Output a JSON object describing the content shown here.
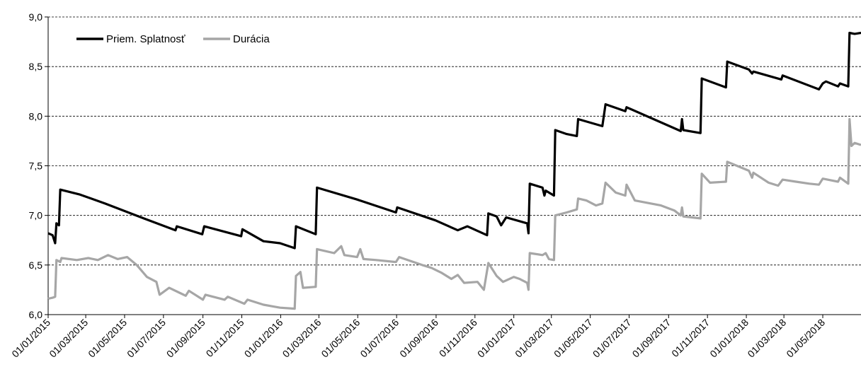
{
  "chart_data": {
    "type": "line",
    "title": "",
    "xlabel": "",
    "ylabel": "",
    "ylim": [
      6.0,
      9.0
    ],
    "grid": true,
    "legend_position": "top-left",
    "y_ticks": [
      "6,0",
      "6,5",
      "7,0",
      "7,5",
      "8,0",
      "8,5",
      "9,0"
    ],
    "x_tick_labels": [
      "01/01/2015",
      "01/03/2015",
      "01/05/2015",
      "01/07/2015",
      "01/09/2015",
      "01/11/2015",
      "01/01/2016",
      "01/03/2016",
      "01/05/2016",
      "01/07/2016",
      "01/09/2016",
      "01/11/2016",
      "01/01/2017",
      "01/03/2017",
      "01/05/2017",
      "01/07/2017",
      "01/09/2017",
      "01/11/2017",
      "01/01/2018",
      "01/03/2018",
      "01/05/2018"
    ],
    "series": [
      {
        "name": "Priem. Splatnosť",
        "color": "#000000",
        "points": [
          [
            "2015-01-01",
            6.82
          ],
          [
            "2015-01-08",
            6.8
          ],
          [
            "2015-01-12",
            6.72
          ],
          [
            "2015-01-14",
            6.92
          ],
          [
            "2015-01-18",
            6.9
          ],
          [
            "2015-01-20",
            7.26
          ],
          [
            "2015-02-20",
            7.21
          ],
          [
            "2015-03-31",
            7.12
          ],
          [
            "2015-05-31",
            6.97
          ],
          [
            "2015-07-20",
            6.85
          ],
          [
            "2015-07-22",
            6.89
          ],
          [
            "2015-08-31",
            6.81
          ],
          [
            "2015-09-03",
            6.89
          ],
          [
            "2015-10-31",
            6.79
          ],
          [
            "2015-11-02",
            6.86
          ],
          [
            "2015-12-05",
            6.74
          ],
          [
            "2015-12-31",
            6.72
          ],
          [
            "2016-01-23",
            6.67
          ],
          [
            "2016-01-25",
            6.89
          ],
          [
            "2016-02-25",
            6.81
          ],
          [
            "2016-02-27",
            7.28
          ],
          [
            "2016-04-30",
            7.16
          ],
          [
            "2016-06-30",
            7.03
          ],
          [
            "2016-07-02",
            7.08
          ],
          [
            "2016-08-31",
            6.95
          ],
          [
            "2016-10-05",
            6.85
          ],
          [
            "2016-10-20",
            6.89
          ],
          [
            "2016-11-20",
            6.8
          ],
          [
            "2016-11-22",
            7.02
          ],
          [
            "2016-12-05",
            6.99
          ],
          [
            "2016-12-12",
            6.9
          ],
          [
            "2016-12-20",
            6.98
          ],
          [
            "2017-01-22",
            6.92
          ],
          [
            "2017-01-24",
            6.82
          ],
          [
            "2017-01-26",
            7.32
          ],
          [
            "2017-02-15",
            7.28
          ],
          [
            "2017-02-18",
            7.2
          ],
          [
            "2017-02-20",
            7.25
          ],
          [
            "2017-03-05",
            7.2
          ],
          [
            "2017-03-07",
            7.86
          ],
          [
            "2017-03-25",
            7.82
          ],
          [
            "2017-04-10",
            7.8
          ],
          [
            "2017-04-12",
            7.97
          ],
          [
            "2017-05-20",
            7.9
          ],
          [
            "2017-05-25",
            8.12
          ],
          [
            "2017-06-25",
            8.05
          ],
          [
            "2017-06-27",
            8.09
          ],
          [
            "2017-09-20",
            7.85
          ],
          [
            "2017-09-22",
            7.97
          ],
          [
            "2017-09-24",
            7.86
          ],
          [
            "2017-10-21",
            7.83
          ],
          [
            "2017-10-23",
            8.38
          ],
          [
            "2017-11-30",
            8.29
          ],
          [
            "2017-12-02",
            8.55
          ],
          [
            "2018-01-05",
            8.47
          ],
          [
            "2018-01-10",
            8.43
          ],
          [
            "2018-01-12",
            8.45
          ],
          [
            "2018-02-25",
            8.37
          ],
          [
            "2018-02-27",
            8.41
          ],
          [
            "2018-04-25",
            8.27
          ],
          [
            "2018-05-01",
            8.33
          ],
          [
            "2018-05-06",
            8.35
          ],
          [
            "2018-05-25",
            8.3
          ],
          [
            "2018-05-28",
            8.33
          ],
          [
            "2018-06-10",
            8.3
          ],
          [
            "2018-06-12",
            8.84
          ],
          [
            "2018-06-20",
            8.83
          ],
          [
            "2018-06-30",
            8.84
          ]
        ]
      },
      {
        "name": "Durácia",
        "color": "#a6a6a6",
        "points": [
          [
            "2015-01-01",
            6.16
          ],
          [
            "2015-01-08",
            6.17
          ],
          [
            "2015-01-12",
            6.18
          ],
          [
            "2015-01-14",
            6.55
          ],
          [
            "2015-01-20",
            6.53
          ],
          [
            "2015-01-22",
            6.57
          ],
          [
            "2015-02-15",
            6.55
          ],
          [
            "2015-03-05",
            6.57
          ],
          [
            "2015-03-20",
            6.55
          ],
          [
            "2015-04-05",
            6.6
          ],
          [
            "2015-04-20",
            6.56
          ],
          [
            "2015-05-05",
            6.58
          ],
          [
            "2015-05-20",
            6.5
          ],
          [
            "2015-06-05",
            6.38
          ],
          [
            "2015-06-20",
            6.33
          ],
          [
            "2015-06-25",
            6.2
          ],
          [
            "2015-07-10",
            6.27
          ],
          [
            "2015-08-05",
            6.19
          ],
          [
            "2015-08-10",
            6.24
          ],
          [
            "2015-09-01",
            6.15
          ],
          [
            "2015-09-05",
            6.2
          ],
          [
            "2015-10-05",
            6.15
          ],
          [
            "2015-10-10",
            6.18
          ],
          [
            "2015-11-05",
            6.11
          ],
          [
            "2015-11-10",
            6.15
          ],
          [
            "2015-12-05",
            6.1
          ],
          [
            "2015-12-31",
            6.07
          ],
          [
            "2016-01-23",
            6.06
          ],
          [
            "2016-01-25",
            6.39
          ],
          [
            "2016-02-01",
            6.43
          ],
          [
            "2016-02-05",
            6.27
          ],
          [
            "2016-02-25",
            6.28
          ],
          [
            "2016-02-27",
            6.66
          ],
          [
            "2016-03-25",
            6.62
          ],
          [
            "2016-04-05",
            6.69
          ],
          [
            "2016-04-10",
            6.6
          ],
          [
            "2016-04-30",
            6.58
          ],
          [
            "2016-05-05",
            6.66
          ],
          [
            "2016-05-10",
            6.56
          ],
          [
            "2016-05-30",
            6.55
          ],
          [
            "2016-06-30",
            6.53
          ],
          [
            "2016-07-05",
            6.58
          ],
          [
            "2016-08-10",
            6.5
          ],
          [
            "2016-08-25",
            6.47
          ],
          [
            "2016-09-10",
            6.42
          ],
          [
            "2016-09-25",
            6.36
          ],
          [
            "2016-10-05",
            6.4
          ],
          [
            "2016-10-15",
            6.32
          ],
          [
            "2016-11-05",
            6.33
          ],
          [
            "2016-11-15",
            6.25
          ],
          [
            "2016-11-22",
            6.52
          ],
          [
            "2016-12-05",
            6.39
          ],
          [
            "2016-12-15",
            6.33
          ],
          [
            "2017-01-01",
            6.38
          ],
          [
            "2017-01-10",
            6.36
          ],
          [
            "2017-01-22",
            6.32
          ],
          [
            "2017-01-24",
            6.25
          ],
          [
            "2017-01-26",
            6.62
          ],
          [
            "2017-02-15",
            6.6
          ],
          [
            "2017-02-20",
            6.62
          ],
          [
            "2017-02-25",
            6.56
          ],
          [
            "2017-03-05",
            6.55
          ],
          [
            "2017-03-07",
            7.0
          ],
          [
            "2017-03-25",
            7.03
          ],
          [
            "2017-04-10",
            7.06
          ],
          [
            "2017-04-12",
            7.17
          ],
          [
            "2017-04-25",
            7.15
          ],
          [
            "2017-05-10",
            7.1
          ],
          [
            "2017-05-20",
            7.12
          ],
          [
            "2017-05-25",
            7.33
          ],
          [
            "2017-06-10",
            7.23
          ],
          [
            "2017-06-25",
            7.2
          ],
          [
            "2017-06-27",
            7.31
          ],
          [
            "2017-07-10",
            7.15
          ],
          [
            "2017-08-20",
            7.1
          ],
          [
            "2017-09-10",
            7.05
          ],
          [
            "2017-09-20",
            7.0
          ],
          [
            "2017-09-22",
            7.08
          ],
          [
            "2017-09-24",
            6.99
          ],
          [
            "2017-10-21",
            6.97
          ],
          [
            "2017-10-23",
            7.42
          ],
          [
            "2017-11-05",
            7.33
          ],
          [
            "2017-11-30",
            7.34
          ],
          [
            "2017-12-02",
            7.54
          ],
          [
            "2018-01-05",
            7.45
          ],
          [
            "2018-01-10",
            7.38
          ],
          [
            "2018-01-12",
            7.43
          ],
          [
            "2018-02-05",
            7.33
          ],
          [
            "2018-02-20",
            7.3
          ],
          [
            "2018-02-27",
            7.36
          ],
          [
            "2018-03-20",
            7.34
          ],
          [
            "2018-04-10",
            7.32
          ],
          [
            "2018-04-25",
            7.31
          ],
          [
            "2018-05-01",
            7.37
          ],
          [
            "2018-05-25",
            7.34
          ],
          [
            "2018-05-28",
            7.38
          ],
          [
            "2018-06-10",
            7.32
          ],
          [
            "2018-06-12",
            7.97
          ],
          [
            "2018-06-15",
            7.7
          ],
          [
            "2018-06-20",
            7.73
          ],
          [
            "2018-06-30",
            7.71
          ]
        ]
      }
    ]
  }
}
